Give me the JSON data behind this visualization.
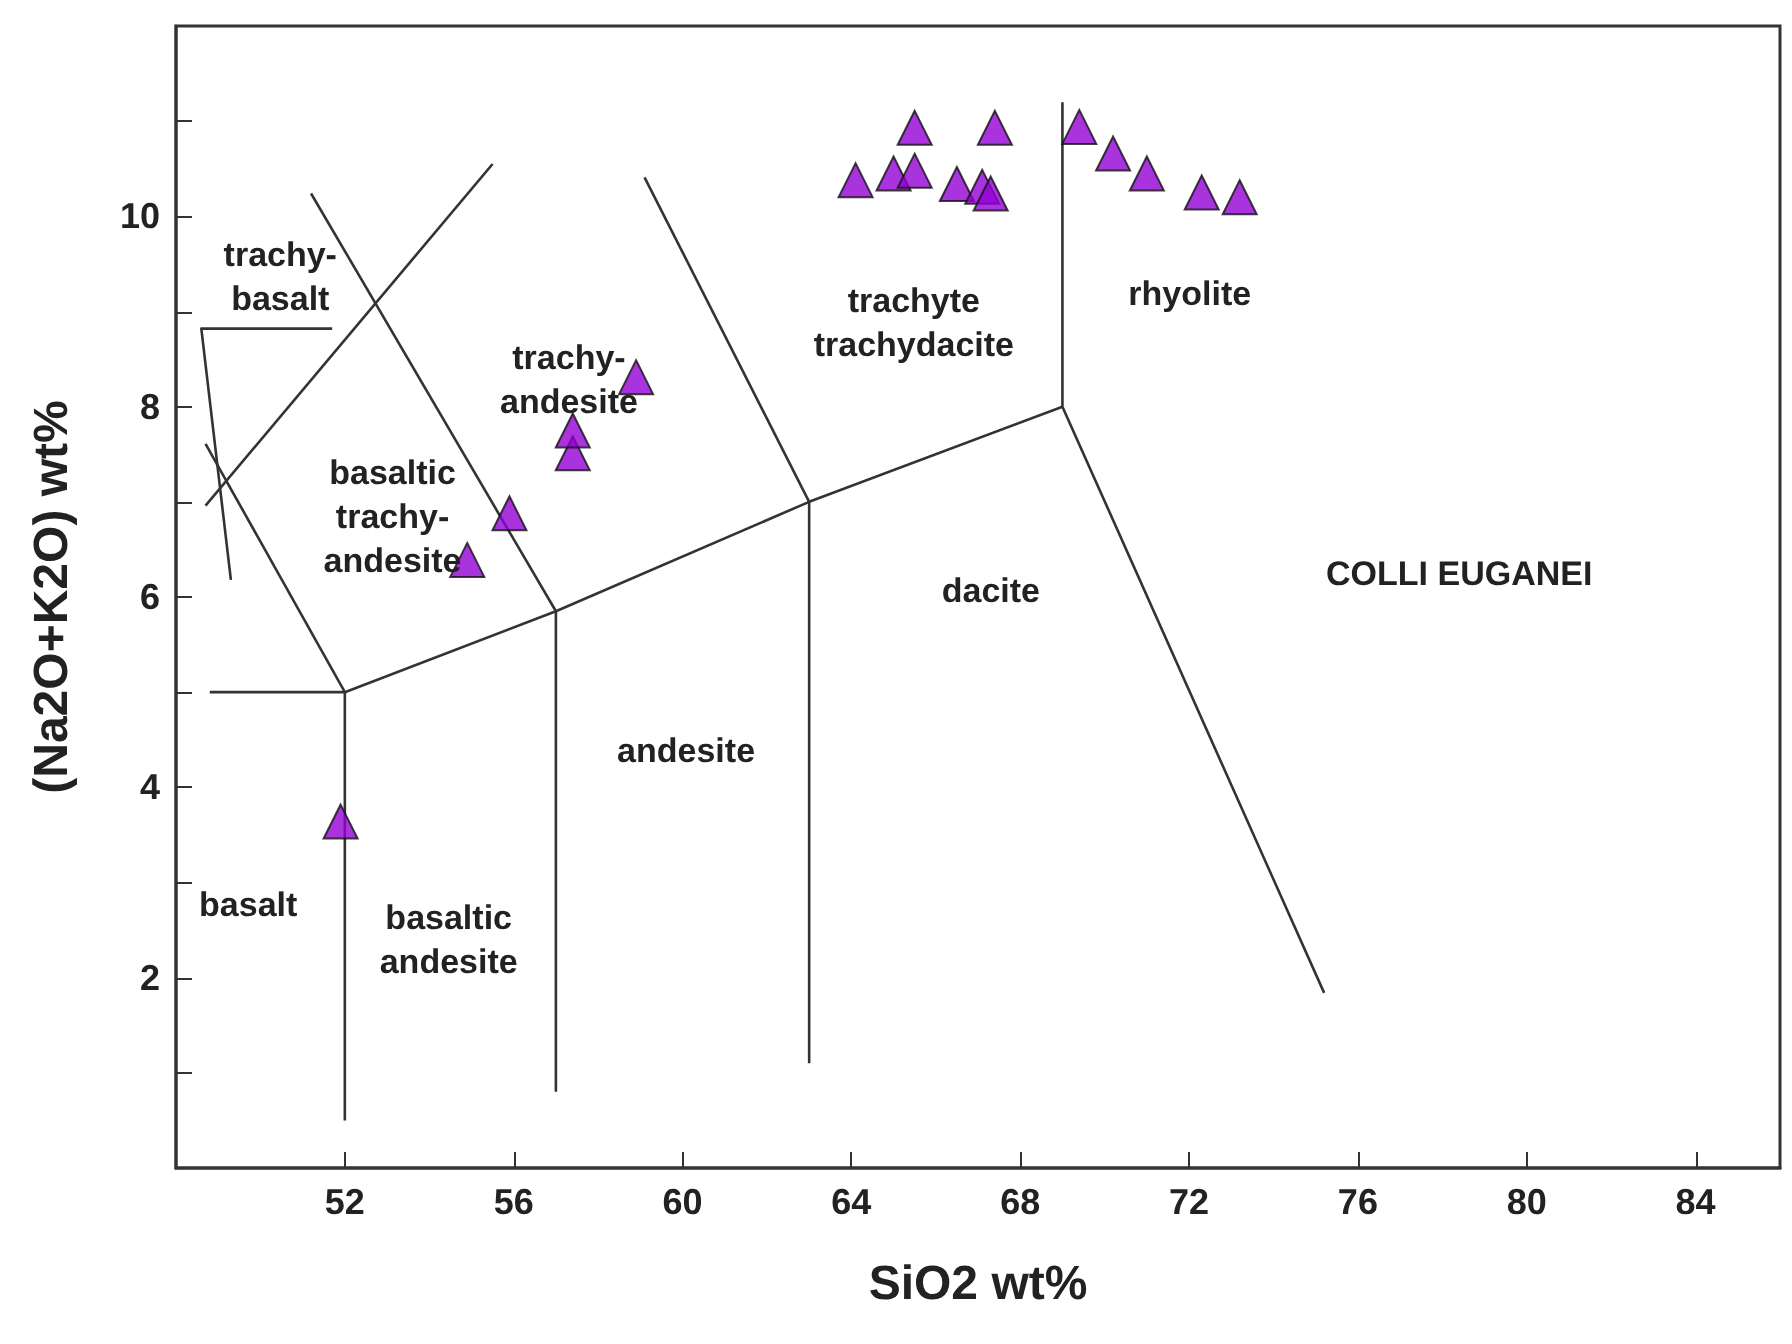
{
  "chart_data": {
    "type": "scatter",
    "xlabel": "SiO2 wt%",
    "ylabel": "(Na2O+K2O) wt%",
    "xlim": [
      48,
      86
    ],
    "xticks": [
      52,
      56,
      60,
      64,
      68,
      72,
      76,
      80,
      84
    ],
    "ylim": [
      0,
      12
    ],
    "yticks": [
      {
        "value": 1,
        "label": null
      },
      2,
      {
        "value": 3,
        "label": null
      },
      4,
      {
        "value": 5,
        "label": null
      },
      6,
      {
        "value": 7,
        "label": null
      },
      8,
      {
        "value": 9,
        "label": null
      },
      10,
      {
        "value": 11,
        "label": null
      }
    ],
    "grid": false,
    "series": [
      {
        "marker": "triangle",
        "color": "#9400d3",
        "x": [
          51.9,
          54.9,
          55.9,
          57.4,
          57.4,
          58.9,
          64.1,
          65.0,
          65.5,
          65.5,
          66.5,
          67.1,
          67.3,
          67.4,
          69.4,
          70.2,
          71.0,
          72.3,
          73.2
        ],
        "values": [
          3.64,
          6.39,
          6.88,
          7.51,
          7.75,
          8.31,
          10.38,
          10.45,
          10.48,
          10.93,
          10.34,
          10.31,
          10.24,
          10.93,
          10.94,
          10.66,
          10.45,
          10.25,
          10.2
        ]
      },
      {
        "type": "line",
        "color": "#333333",
        "x": [
          48.8,
          52,
          57,
          63,
          69
        ],
        "values": [
          5.0,
          5.0,
          5.85,
          7.0,
          8.0
        ]
      },
      {
        "type": "line",
        "color": "#333333",
        "x": [
          52,
          52
        ],
        "values": [
          0.5,
          5.0
        ]
      },
      {
        "type": "line",
        "color": "#333333",
        "x": [
          57,
          57
        ],
        "values": [
          0.8,
          5.85
        ]
      },
      {
        "type": "line",
        "color": "#333333",
        "x": [
          63,
          63
        ],
        "values": [
          1.1,
          7.0
        ]
      },
      {
        "type": "line",
        "color": "#333333",
        "x": [
          69,
          69,
          75.2
        ],
        "values": [
          11.2,
          8.0,
          1.84
        ]
      },
      {
        "type": "line",
        "color": "#333333",
        "x": [
          59.1,
          63
        ],
        "values": [
          10.41,
          7.0
        ]
      },
      {
        "type": "line",
        "color": "#333333",
        "x": [
          51.2,
          57
        ],
        "values": [
          10.24,
          5.85
        ]
      },
      {
        "type": "line",
        "color": "#333333",
        "x": [
          48.7,
          52
        ],
        "values": [
          7.61,
          5.0
        ]
      },
      {
        "type": "line",
        "color": "#333333",
        "x": [
          48.7,
          55.5
        ],
        "values": [
          6.96,
          10.55
        ]
      },
      {
        "type": "line",
        "color": "#333333",
        "x": [
          51.7,
          48.6,
          49.3
        ],
        "values": [
          8.82,
          8.82,
          6.18
        ]
      }
    ],
    "annotations": [
      "trachy-\nbasalt",
      "basaltic\ntrachy-\nandesite",
      "trachy-\nandesite",
      "trachyte\ntrachydacite",
      "rhyolite",
      "dacite",
      "andesite",
      "basalt",
      "basaltic\nandesite",
      "COLLI EUGANEI"
    ]
  }
}
